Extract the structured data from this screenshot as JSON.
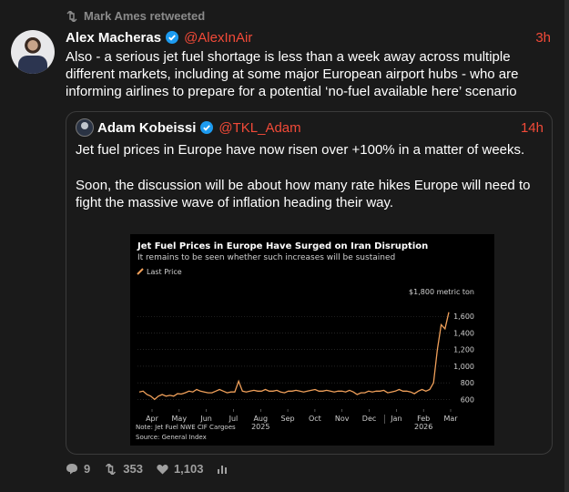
{
  "retweet": {
    "text": "Mark Ames retweeted"
  },
  "tweet": {
    "name": "Alex Macheras",
    "handle": "@AlexInAir",
    "time": "3h",
    "text": "Also - a serious jet fuel shortage is less than a week away across multiple different markets, including at some major European airport hubs - who are informing airlines to prepare for a potential ‘no-fuel available here’ scenario"
  },
  "quote": {
    "name": "Adam Kobeissi",
    "handle": "@TKL_Adam",
    "time": "14h",
    "paragraphs": [
      "Jet fuel prices in Europe have now risen over +100% in a matter of weeks.",
      "Soon, the discussion will be about how many rate hikes Europe will need to fight the massive wave of inflation heading their way."
    ]
  },
  "actions": {
    "replies": "9",
    "retweets": "353",
    "likes": "1,103"
  },
  "colors": {
    "accent": "#f24a38",
    "line": "#f0a05a",
    "verified": "#1d9bf0"
  },
  "chart_data": {
    "type": "line",
    "title": "Jet Fuel Prices in Europe Have Surged on Iran Disruption",
    "subtitle": "It remains to be seen whether such increases will be sustained",
    "legend": "Last Price",
    "unit_label": "$1,800 metric ton",
    "note": "Note: Jet Fuel NWE CIF Cargoes",
    "source": "Source: General Index",
    "x_ticks": [
      "Apr",
      "May",
      "Jun",
      "Jul",
      "Aug",
      "Sep",
      "Oct",
      "Nov",
      "Dec",
      "Jan",
      "Feb",
      "Mar"
    ],
    "year_labels": [
      "2025",
      "2026"
    ],
    "y_ticks": [
      "1,600",
      "1,400",
      "1,200",
      "1,000",
      "800",
      "600"
    ],
    "ylim": [
      550,
      1800
    ],
    "series": [
      {
        "values": [
          690,
          700,
          660,
          640,
          600,
          640,
          660,
          640,
          650,
          640,
          670,
          665,
          680,
          700,
          690,
          720,
          700,
          690,
          680,
          680,
          700,
          720,
          700,
          680,
          690,
          690,
          820,
          700,
          690,
          700,
          710,
          700,
          700,
          720,
          700,
          700,
          710,
          690,
          680,
          700,
          700,
          710,
          700,
          690,
          700,
          710,
          720,
          700,
          700,
          710,
          700,
          690,
          700,
          700,
          690,
          710,
          690,
          660,
          680,
          680,
          700,
          690,
          700,
          700,
          710,
          680,
          690,
          700,
          720,
          700,
          700,
          690,
          670,
          700,
          720,
          700,
          720,
          800,
          1200,
          1500,
          1450,
          1650
        ]
      }
    ]
  }
}
